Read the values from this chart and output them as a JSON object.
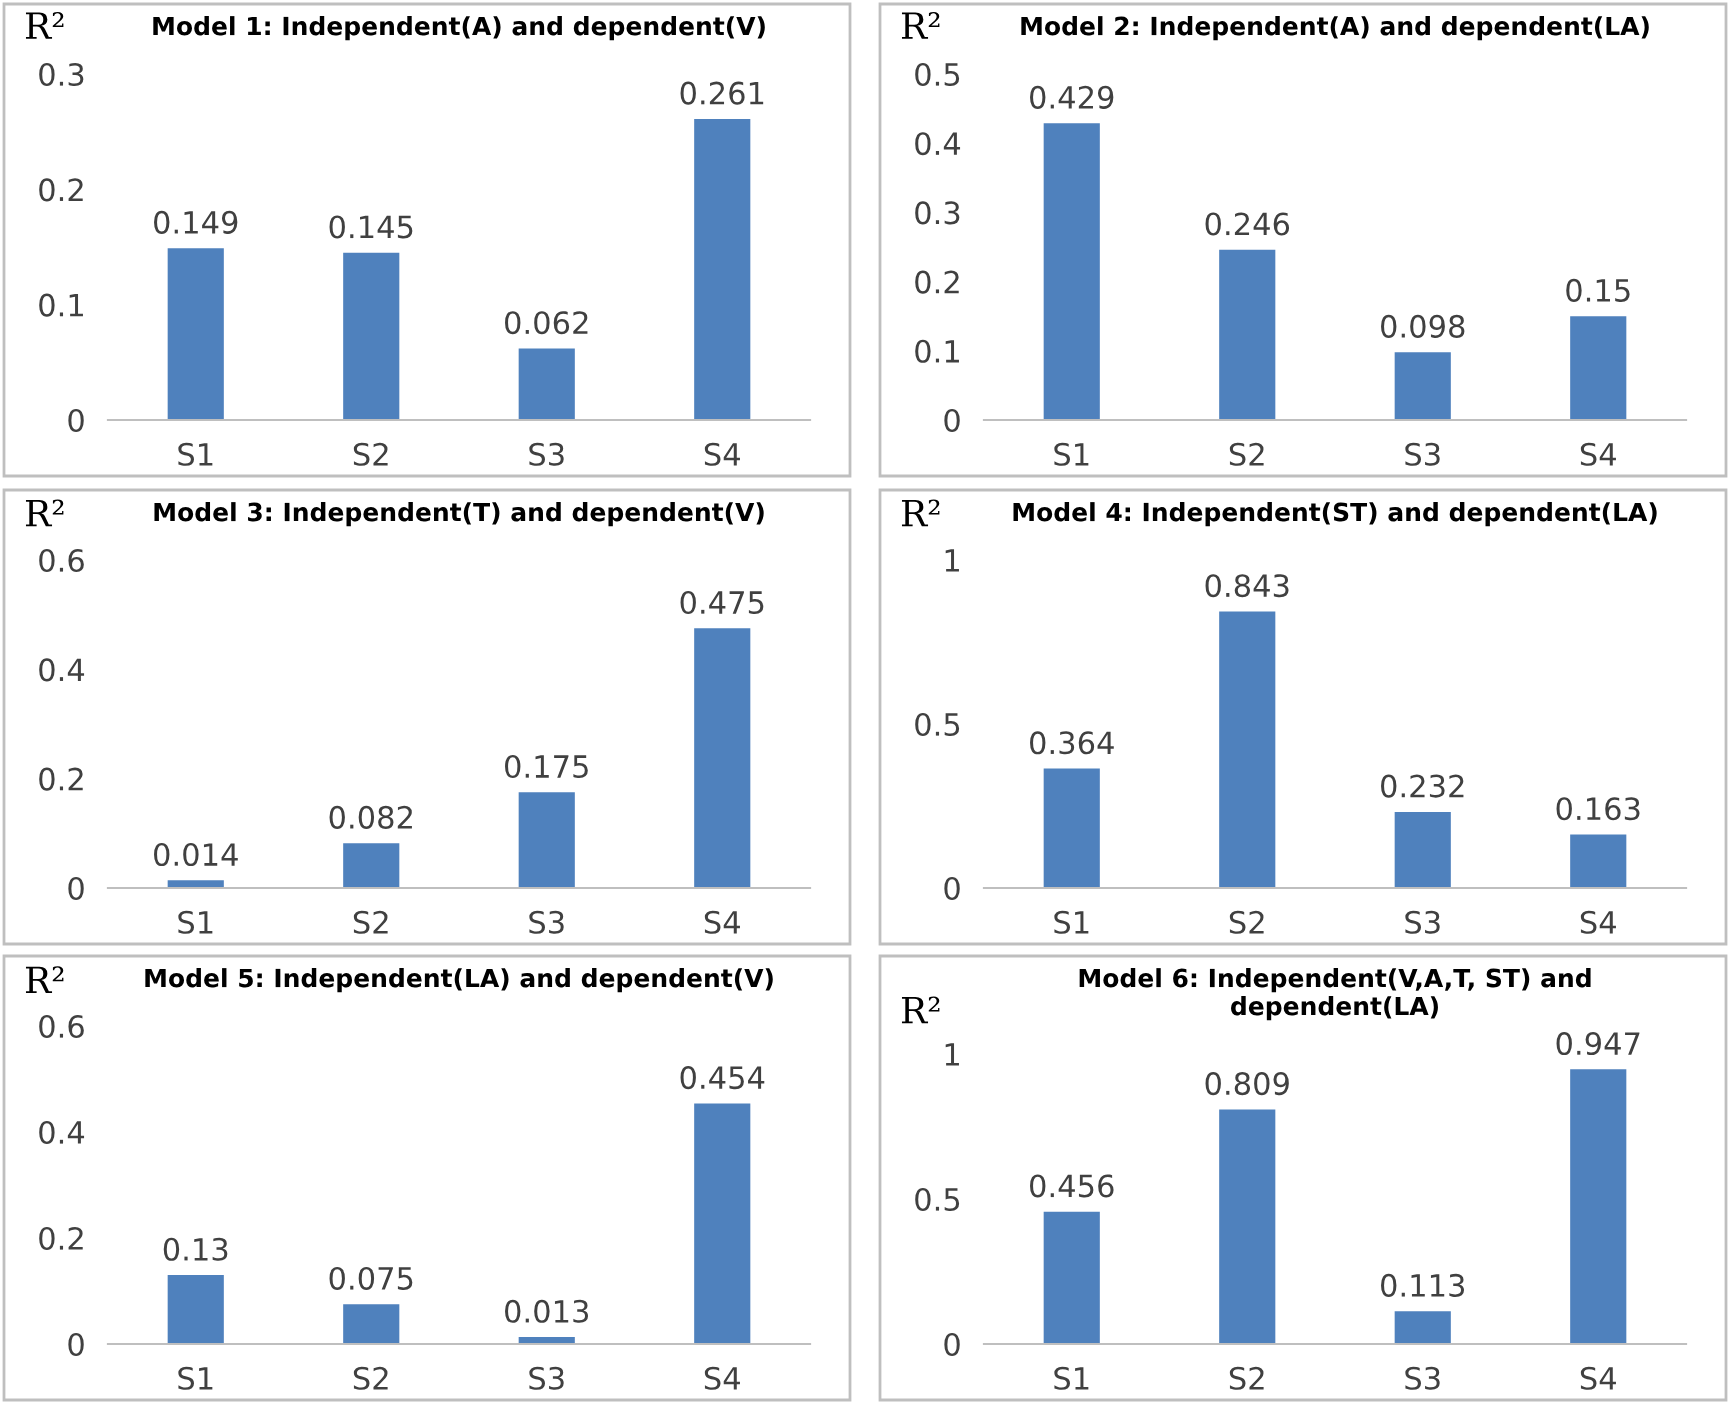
{
  "chart_data": [
    {
      "type": "bar",
      "title": "Model 1: Independent(A) and dependent(V)",
      "ylabel": "R²",
      "categories": [
        "S1",
        "S2",
        "S3",
        "S4"
      ],
      "values": [
        0.149,
        0.145,
        0.062,
        0.261
      ],
      "color": "#4f81bd",
      "ylim": [
        0,
        0.3
      ],
      "yticks": [
        0,
        0.1,
        0.2,
        0.3
      ],
      "data_labels": true,
      "grid": false,
      "legend": false
    },
    {
      "type": "bar",
      "title": "Model 2: Independent(A) and dependent(LA)",
      "ylabel": "R²",
      "categories": [
        "S1",
        "S2",
        "S3",
        "S4"
      ],
      "values": [
        0.429,
        0.246,
        0.098,
        0.15
      ],
      "color": "#4f81bd",
      "ylim": [
        0,
        0.5
      ],
      "yticks": [
        0,
        0.1,
        0.2,
        0.3,
        0.4,
        0.5
      ],
      "data_labels": true,
      "grid": false,
      "legend": false
    },
    {
      "type": "bar",
      "title": "Model 3: Independent(T) and dependent(V)",
      "ylabel": "R²",
      "categories": [
        "S1",
        "S2",
        "S3",
        "S4"
      ],
      "values": [
        0.014,
        0.082,
        0.175,
        0.475
      ],
      "color": "#4f81bd",
      "ylim": [
        0,
        0.6
      ],
      "yticks": [
        0,
        0.2,
        0.4,
        0.6
      ],
      "data_labels": true,
      "grid": false,
      "legend": false
    },
    {
      "type": "bar",
      "title": "Model 4: Independent(ST) and dependent(LA)",
      "ylabel": "R²",
      "categories": [
        "S1",
        "S2",
        "S3",
        "S4"
      ],
      "values": [
        0.364,
        0.843,
        0.232,
        0.163
      ],
      "color": "#4f81bd",
      "ylim": [
        0,
        1
      ],
      "yticks": [
        0,
        0.5,
        1
      ],
      "data_labels": true,
      "grid": false,
      "legend": false
    },
    {
      "type": "bar",
      "title": "Model 5: Independent(LA) and dependent(V)",
      "ylabel": "R²",
      "categories": [
        "S1",
        "S2",
        "S3",
        "S4"
      ],
      "values": [
        0.13,
        0.075,
        0.013,
        0.454
      ],
      "color": "#4f81bd",
      "ylim": [
        0,
        0.6
      ],
      "yticks": [
        0,
        0.2,
        0.4,
        0.6
      ],
      "data_labels": true,
      "grid": false,
      "legend": false
    },
    {
      "type": "bar",
      "title": "Model 6: Independent(V,A,T, ST) and\ndependent(LA)",
      "ylabel": "R²",
      "categories": [
        "S1",
        "S2",
        "S3",
        "S4"
      ],
      "values": [
        0.456,
        0.809,
        0.113,
        0.947
      ],
      "color": "#4f81bd",
      "ylim": [
        0,
        1
      ],
      "yticks": [
        0,
        0.5,
        1
      ],
      "data_labels": true,
      "grid": false,
      "legend": false
    }
  ]
}
